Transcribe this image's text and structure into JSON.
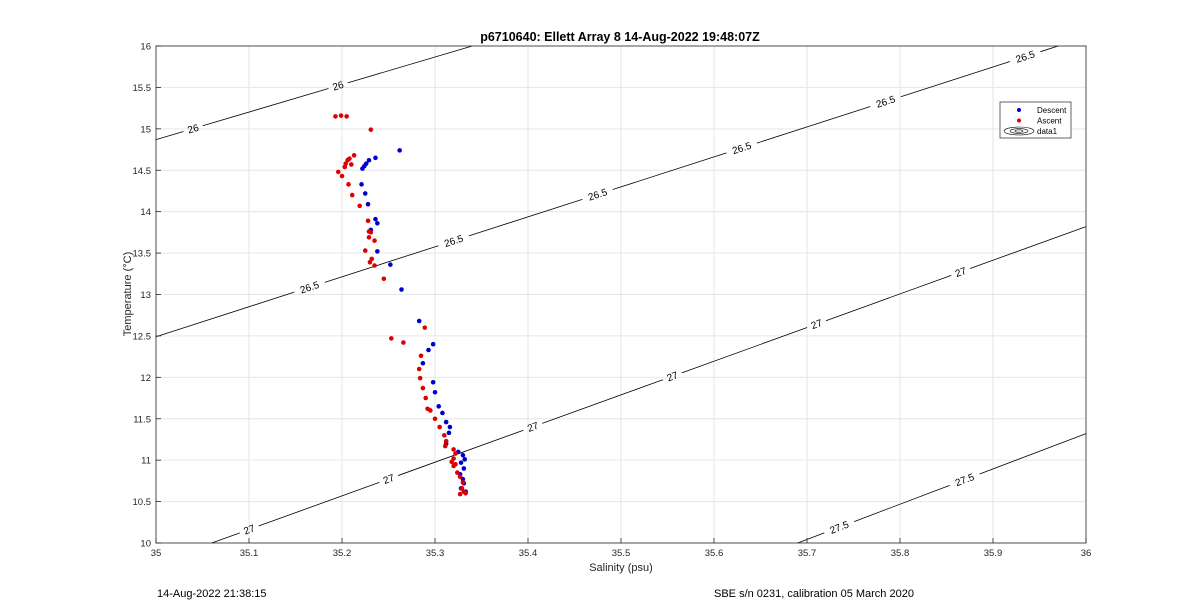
{
  "chart_data": {
    "type": "scatter",
    "title": "p6710640: Ellett Array 8 14-Aug-2022 19:48:07Z",
    "xlabel": "Salinity (psu)",
    "ylabel": "Temperature (°C)",
    "xlim": [
      35,
      36
    ],
    "ylim": [
      10,
      16
    ],
    "xticks": [
      "35",
      "35.1",
      "35.2",
      "35.3",
      "35.4",
      "35.5",
      "35.6",
      "35.7",
      "35.8",
      "35.9",
      "36"
    ],
    "yticks": [
      "10",
      "10.5",
      "11",
      "11.5",
      "12",
      "12.5",
      "13",
      "13.5",
      "14",
      "14.5",
      "15",
      "15.5",
      "16"
    ],
    "grid": true,
    "legend_position": "top-right",
    "legend": [
      "Descent",
      "Ascent",
      "data1"
    ],
    "colors": {
      "descent": "#0000cc",
      "ascent": "#dd0000",
      "contour": "#000000"
    },
    "series": [
      {
        "name": "Descent",
        "points": [
          [
            35.262,
            14.74
          ],
          [
            35.236,
            14.65
          ],
          [
            35.229,
            14.62
          ],
          [
            35.226,
            14.58
          ],
          [
            35.224,
            14.55
          ],
          [
            35.222,
            14.52
          ],
          [
            35.221,
            14.33
          ],
          [
            35.225,
            14.22
          ],
          [
            35.228,
            14.09
          ],
          [
            35.236,
            13.91
          ],
          [
            35.238,
            13.86
          ],
          [
            35.231,
            13.78
          ],
          [
            35.238,
            13.52
          ],
          [
            35.252,
            13.36
          ],
          [
            35.264,
            13.06
          ],
          [
            35.283,
            12.68
          ],
          [
            35.298,
            12.4
          ],
          [
            35.293,
            12.33
          ],
          [
            35.287,
            12.17
          ],
          [
            35.298,
            11.94
          ],
          [
            35.3,
            11.82
          ],
          [
            35.304,
            11.65
          ],
          [
            35.308,
            11.57
          ],
          [
            35.312,
            11.46
          ],
          [
            35.316,
            11.4
          ],
          [
            35.315,
            11.33
          ],
          [
            35.312,
            11.2
          ],
          [
            35.325,
            11.1
          ],
          [
            35.33,
            11.06
          ],
          [
            35.332,
            11.01
          ],
          [
            35.328,
            10.97
          ],
          [
            35.331,
            10.9
          ],
          [
            35.327,
            10.83
          ],
          [
            35.33,
            10.77
          ],
          [
            35.331,
            10.72
          ],
          [
            35.328,
            10.66
          ],
          [
            35.333,
            10.62
          ]
        ]
      },
      {
        "name": "Ascent",
        "points": [
          [
            35.193,
            15.15
          ],
          [
            35.199,
            15.16
          ],
          [
            35.205,
            15.15
          ],
          [
            35.231,
            14.99
          ],
          [
            35.213,
            14.68
          ],
          [
            35.208,
            14.64
          ],
          [
            35.206,
            14.62
          ],
          [
            35.204,
            14.58
          ],
          [
            35.21,
            14.57
          ],
          [
            35.203,
            14.54
          ],
          [
            35.196,
            14.48
          ],
          [
            35.2,
            14.43
          ],
          [
            35.207,
            14.33
          ],
          [
            35.211,
            14.2
          ],
          [
            35.219,
            14.07
          ],
          [
            35.228,
            13.89
          ],
          [
            35.229,
            13.76
          ],
          [
            35.231,
            13.75
          ],
          [
            35.235,
            13.65
          ],
          [
            35.229,
            13.69
          ],
          [
            35.225,
            13.53
          ],
          [
            35.232,
            13.43
          ],
          [
            35.23,
            13.39
          ],
          [
            35.235,
            13.35
          ],
          [
            35.245,
            13.19
          ],
          [
            35.253,
            12.47
          ],
          [
            35.266,
            12.42
          ],
          [
            35.289,
            12.6
          ],
          [
            35.285,
            12.26
          ],
          [
            35.283,
            12.1
          ],
          [
            35.284,
            11.99
          ],
          [
            35.287,
            11.87
          ],
          [
            35.29,
            11.75
          ],
          [
            35.292,
            11.62
          ],
          [
            35.295,
            11.6
          ],
          [
            35.3,
            11.5
          ],
          [
            35.305,
            11.4
          ],
          [
            35.31,
            11.3
          ],
          [
            35.312,
            11.23
          ],
          [
            35.311,
            11.17
          ],
          [
            35.32,
            11.13
          ],
          [
            35.322,
            11.08
          ],
          [
            35.32,
            11.02
          ],
          [
            35.318,
            10.98
          ],
          [
            35.322,
            10.95
          ],
          [
            35.32,
            10.93
          ],
          [
            35.324,
            10.85
          ],
          [
            35.327,
            10.8
          ],
          [
            35.33,
            10.73
          ],
          [
            35.329,
            10.66
          ],
          [
            35.331,
            10.62
          ],
          [
            35.327,
            10.59
          ],
          [
            35.333,
            10.6
          ]
        ]
      }
    ],
    "contours": [
      {
        "label": "26",
        "points": [
          [
            35,
            14.87
          ],
          [
            35.34,
            16.0
          ]
        ],
        "label_at": [
          [
            35.04,
            15.0
          ],
          [
            35.195,
            15.55
          ]
        ]
      },
      {
        "label": "26.5",
        "points": [
          [
            35,
            12.49
          ],
          [
            35.97,
            16.0
          ]
        ],
        "label_at": [
          [
            35.165,
            13.09
          ],
          [
            35.32,
            13.65
          ],
          [
            35.475,
            14.2
          ],
          [
            35.63,
            14.76
          ],
          [
            35.785,
            15.31
          ],
          [
            35.935,
            15.86
          ]
        ]
      },
      {
        "label": "27",
        "points": [
          [
            35.06,
            10.0
          ],
          [
            36,
            13.82
          ]
        ],
        "label_at": [
          [
            35.1,
            10.17
          ],
          [
            35.25,
            10.78
          ],
          [
            35.405,
            11.41
          ],
          [
            35.555,
            12.02
          ],
          [
            35.71,
            12.65
          ],
          [
            35.865,
            13.28
          ]
        ]
      },
      {
        "label": "27.5",
        "points": [
          [
            35.69,
            10.0
          ],
          [
            36,
            11.32
          ]
        ],
        "label_at": [
          [
            35.735,
            10.18
          ],
          [
            35.87,
            10.75
          ]
        ]
      }
    ]
  },
  "footer": {
    "timestamp": "14-Aug-2022 21:38:15",
    "calibration": "SBE s/n 0231, calibration 05 March 2020"
  }
}
